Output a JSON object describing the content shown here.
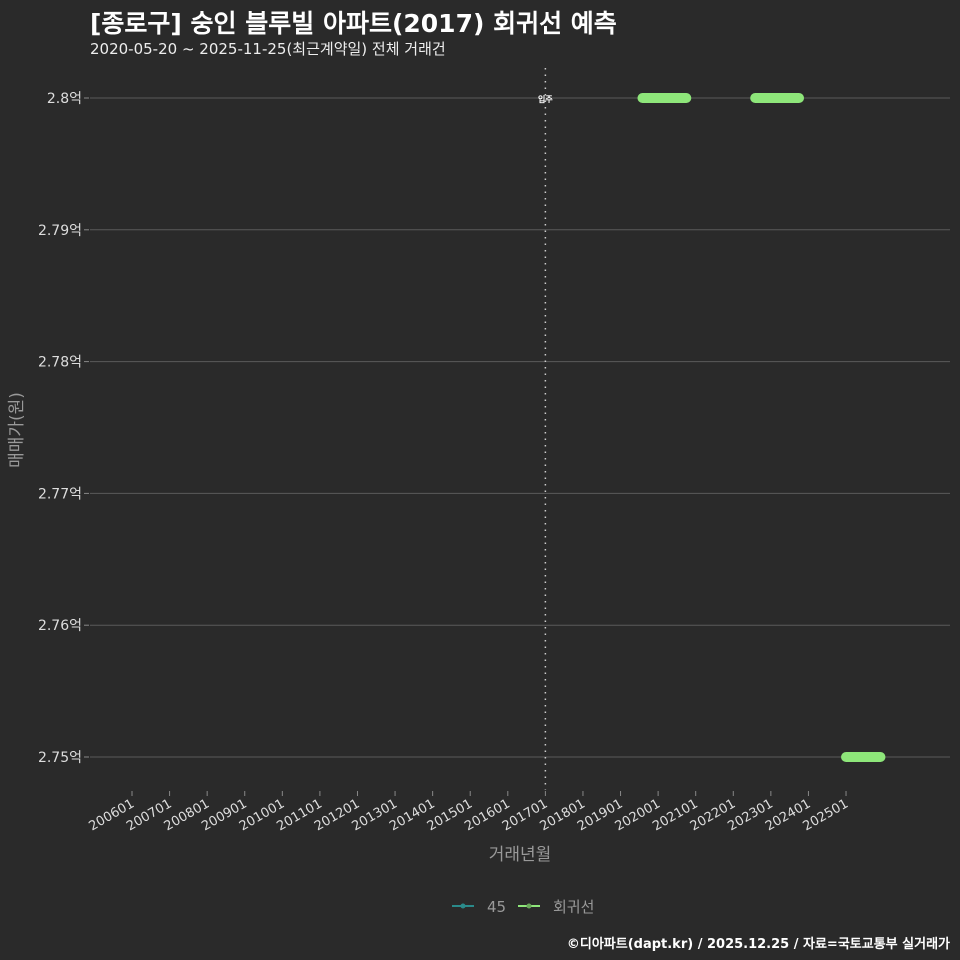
{
  "header": {
    "title": "[종로구] 숭인 블루빌 아파트(2017) 회귀선 예측",
    "subtitle": "2020-05-20 ~ 2025-11-25(최근계약일) 전체 거래건"
  },
  "footer": {
    "credit": "©디아파트(dapt.kr) / 2025.12.25 / 자료=국토교통부 실거래가"
  },
  "colors": {
    "background": "#2a2a2a",
    "grid": "#5a5a5a",
    "regression": "#8ee67a",
    "series_45": "#2a8a8a",
    "text": "#dddddd"
  },
  "chart_data": {
    "type": "line",
    "title": "[종로구] 숭인 블루빌 아파트(2017) 회귀선 예측",
    "subtitle": "2020-05-20 ~ 2025-11-25(최근계약일) 전체 거래건",
    "xlabel": "거래년월",
    "ylabel": "매매가(원)",
    "x_ticks": [
      "200601",
      "200701",
      "200801",
      "200901",
      "201001",
      "201101",
      "201201",
      "201301",
      "201401",
      "201501",
      "201601",
      "201701",
      "201801",
      "201901",
      "202001",
      "202101",
      "202201",
      "202301",
      "202401",
      "202501"
    ],
    "y_ticks": [
      "2.75억",
      "2.76억",
      "2.77억",
      "2.78억",
      "2.79억",
      "2.8억"
    ],
    "ylim": [
      2.75,
      2.8
    ],
    "y_unit": "억",
    "grid": true,
    "legend_position": "bottom",
    "legend": [
      {
        "label": "45",
        "color": "#2a8a8a"
      },
      {
        "label": "회귀선",
        "color": "#8ee67a"
      }
    ],
    "annotations": [
      {
        "label": "입주",
        "x": "201701",
        "style": "dotted vertical line"
      }
    ],
    "series": [
      {
        "name": "45",
        "points": []
      },
      {
        "name": "회귀선",
        "segments": [
          {
            "x_start": "201908",
            "x_end": "202010",
            "y": 2.8
          },
          {
            "x_start": "202208",
            "x_end": "202310",
            "y": 2.8
          },
          {
            "x_start": "202501",
            "x_end": "202512",
            "y": 2.75
          }
        ]
      }
    ]
  },
  "axis": {
    "x_label": "거래년월",
    "y_label": "매매가(원)",
    "vline_label": "입주"
  },
  "legend": {
    "item1": "45",
    "item2": "회귀선"
  }
}
